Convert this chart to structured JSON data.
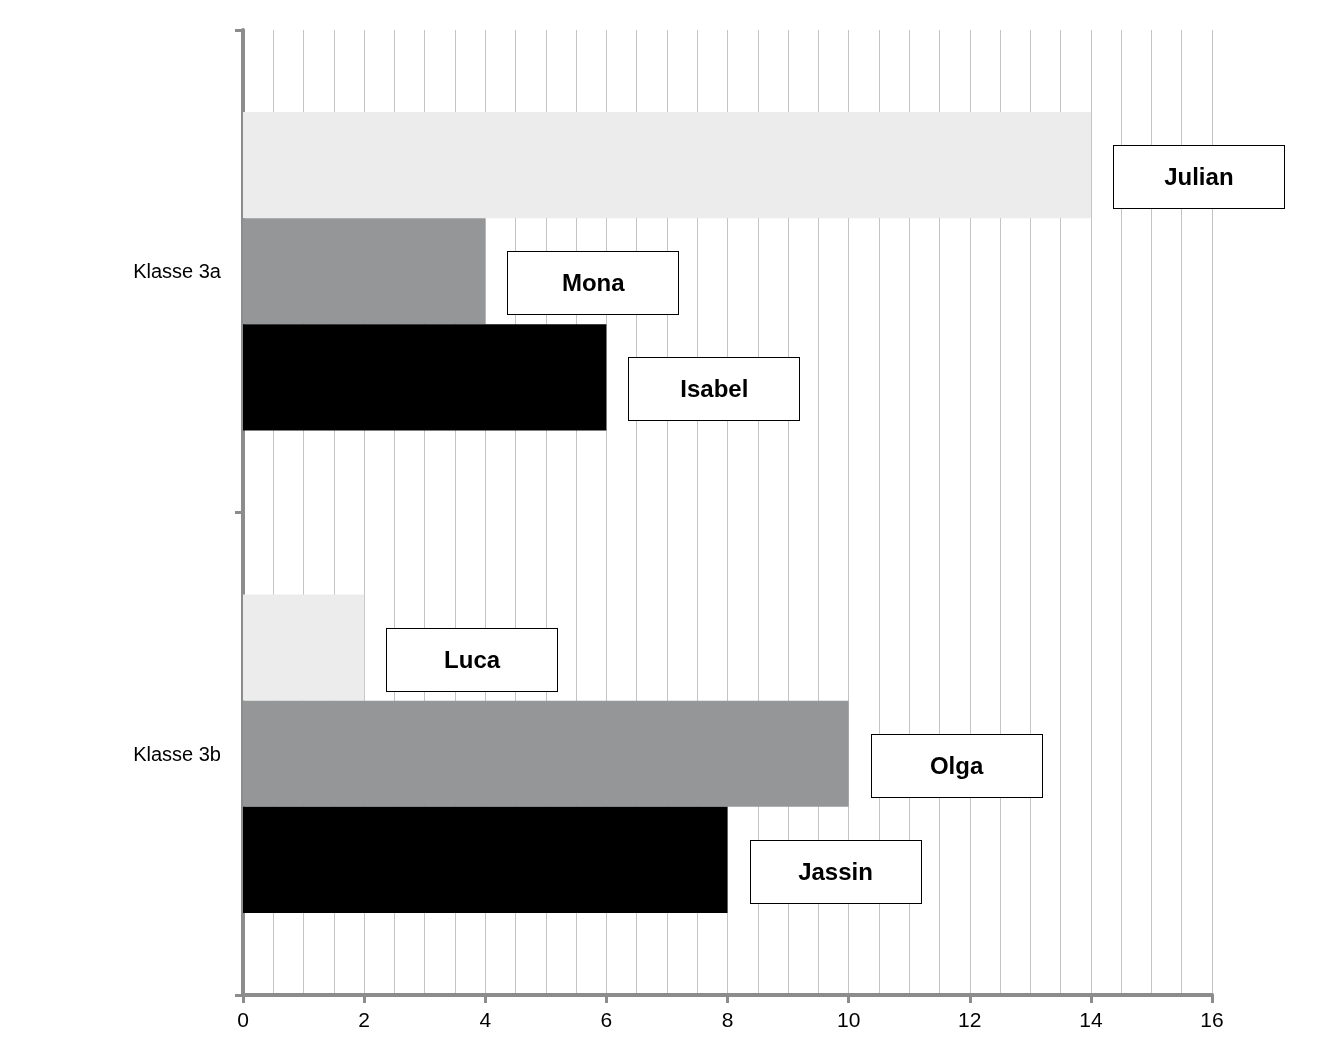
{
  "chart_data": {
    "type": "bar",
    "orientation": "horizontal",
    "categories": [
      "Klasse 3a",
      "Klasse 3b"
    ],
    "series": [
      {
        "color": "#ececec",
        "values": [
          14,
          2
        ]
      },
      {
        "color": "#949697",
        "values": [
          4,
          10
        ]
      },
      {
        "color": "#000000",
        "values": [
          6,
          8
        ]
      }
    ],
    "xlim": [
      0,
      16
    ],
    "xticks": [
      0,
      2,
      4,
      6,
      8,
      10,
      12,
      14,
      16
    ],
    "grid": "x",
    "annotations": [
      "Julian",
      "Mona",
      "Isabel",
      "Luca",
      "Olga",
      "Jassin"
    ]
  }
}
